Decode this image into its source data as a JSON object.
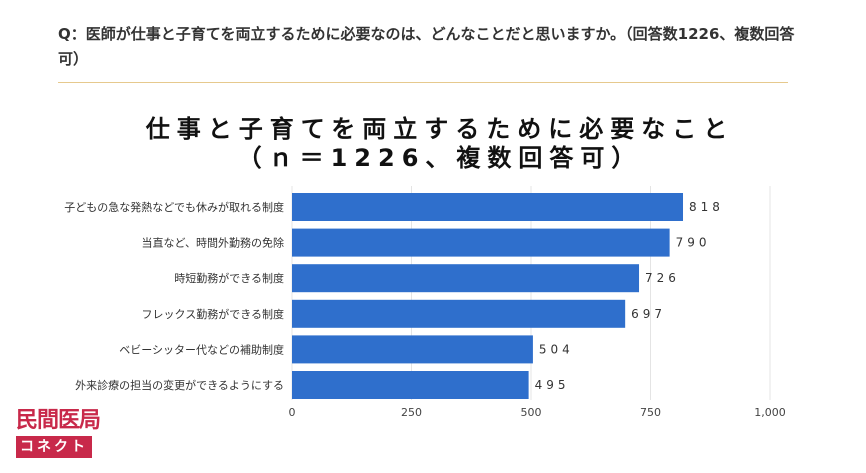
{
  "question": "Q：医師が仕事と子育てを両立するために必要なのは、どんなことだと思いますか。（回答数1226、複数回答可）",
  "logo": {
    "line1": "民間医局",
    "line2": "コネクト"
  },
  "chart_data": {
    "type": "bar",
    "orientation": "horizontal",
    "title": "仕事と子育てを両立するために必要なこと",
    "subtitle": "（ｎ＝1226、複数回答可）",
    "categories": [
      "子どもの急な発熱などでも休みが取れる制度",
      "当直など、時間外勤務の免除",
      "時短勤務ができる制度",
      "フレックス勤務ができる制度",
      "ベビーシッター代などの補助制度",
      "外来診療の担当の変更ができるようにする"
    ],
    "values": [
      818,
      790,
      726,
      697,
      504,
      495
    ],
    "value_labels": [
      "818",
      "790",
      "726",
      "697",
      "504",
      "495"
    ],
    "xlim": [
      0,
      1000
    ],
    "xticks": [
      0,
      250,
      500,
      750,
      1000
    ],
    "xtick_labels": [
      "0",
      "250",
      "500",
      "750",
      "1,000"
    ],
    "grid": true,
    "bar_color": "#2f6fcc"
  }
}
